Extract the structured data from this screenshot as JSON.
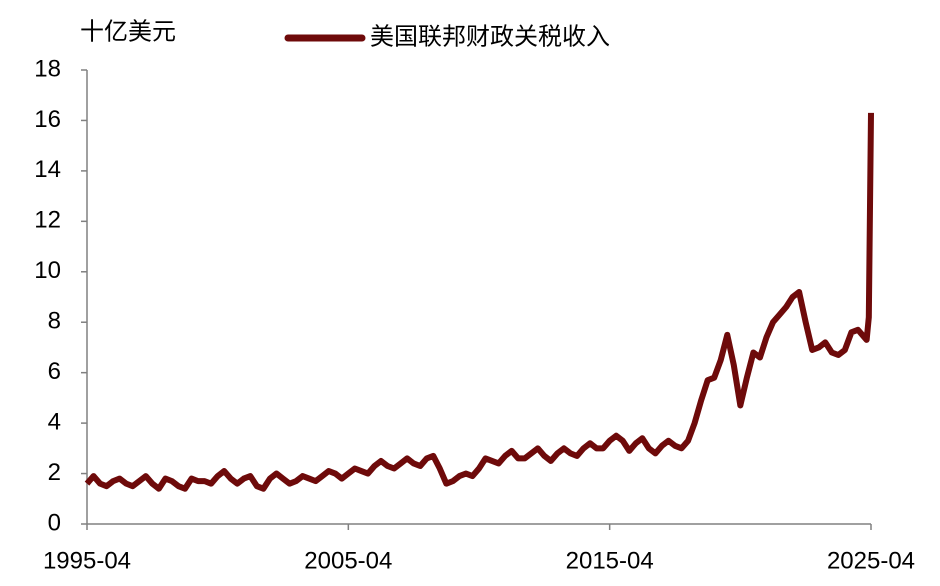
{
  "chart_data": {
    "type": "line",
    "y_label": "十亿美元",
    "x": [
      "1995-04",
      "1995-07",
      "1995-10",
      "1996-01",
      "1996-04",
      "1996-07",
      "1996-10",
      "1997-01",
      "1997-04",
      "1997-07",
      "1997-10",
      "1998-01",
      "1998-04",
      "1998-07",
      "1998-10",
      "1999-01",
      "1999-04",
      "1999-07",
      "1999-10",
      "2000-01",
      "2000-04",
      "2000-07",
      "2000-10",
      "2001-01",
      "2001-04",
      "2001-07",
      "2001-10",
      "2002-01",
      "2002-04",
      "2002-07",
      "2002-10",
      "2003-01",
      "2003-04",
      "2003-07",
      "2003-10",
      "2004-01",
      "2004-04",
      "2004-07",
      "2004-10",
      "2005-01",
      "2005-04",
      "2005-07",
      "2005-10",
      "2006-01",
      "2006-04",
      "2006-07",
      "2006-10",
      "2007-01",
      "2007-04",
      "2007-07",
      "2007-10",
      "2008-01",
      "2008-04",
      "2008-07",
      "2008-10",
      "2009-01",
      "2009-04",
      "2009-07",
      "2009-10",
      "2010-01",
      "2010-04",
      "2010-07",
      "2010-10",
      "2011-01",
      "2011-04",
      "2011-07",
      "2011-10",
      "2012-01",
      "2012-04",
      "2012-07",
      "2012-10",
      "2013-01",
      "2013-04",
      "2013-07",
      "2013-10",
      "2014-01",
      "2014-04",
      "2014-07",
      "2014-10",
      "2015-01",
      "2015-04",
      "2015-07",
      "2015-10",
      "2016-01",
      "2016-04",
      "2016-07",
      "2016-10",
      "2017-01",
      "2017-04",
      "2017-07",
      "2017-10",
      "2018-01",
      "2018-04",
      "2018-07",
      "2018-10",
      "2019-01",
      "2019-04",
      "2019-07",
      "2019-10",
      "2020-01",
      "2020-04",
      "2020-07",
      "2020-10",
      "2021-01",
      "2021-04",
      "2021-07",
      "2021-10",
      "2022-01",
      "2022-04",
      "2022-07",
      "2022-10",
      "2023-01",
      "2023-04",
      "2023-07",
      "2023-10",
      "2024-01",
      "2024-04",
      "2024-07",
      "2024-10",
      "2025-01",
      "2025-02",
      "2025-03",
      "2025-04"
    ],
    "series": [
      {
        "name": "美国联邦财政关税收入",
        "color": "#6e0a0a",
        "values": [
          1.6,
          1.9,
          1.6,
          1.5,
          1.7,
          1.8,
          1.6,
          1.5,
          1.7,
          1.9,
          1.6,
          1.4,
          1.8,
          1.7,
          1.5,
          1.4,
          1.8,
          1.7,
          1.7,
          1.6,
          1.9,
          2.1,
          1.8,
          1.6,
          1.8,
          1.9,
          1.5,
          1.4,
          1.8,
          2.0,
          1.8,
          1.6,
          1.7,
          1.9,
          1.8,
          1.7,
          1.9,
          2.1,
          2.0,
          1.8,
          2.0,
          2.2,
          2.1,
          2.0,
          2.3,
          2.5,
          2.3,
          2.2,
          2.4,
          2.6,
          2.4,
          2.3,
          2.6,
          2.7,
          2.2,
          1.6,
          1.7,
          1.9,
          2.0,
          1.9,
          2.2,
          2.6,
          2.5,
          2.4,
          2.7,
          2.9,
          2.6,
          2.6,
          2.8,
          3.0,
          2.7,
          2.5,
          2.8,
          3.0,
          2.8,
          2.7,
          3.0,
          3.2,
          3.0,
          3.0,
          3.3,
          3.5,
          3.3,
          2.9,
          3.2,
          3.4,
          3.0,
          2.8,
          3.1,
          3.3,
          3.1,
          3.0,
          3.3,
          4.0,
          4.9,
          5.7,
          5.8,
          6.5,
          7.5,
          6.3,
          4.7,
          5.8,
          6.8,
          6.6,
          7.4,
          8.0,
          8.3,
          8.6,
          9.0,
          9.2,
          8.0,
          6.9,
          7.0,
          7.2,
          6.8,
          6.7,
          6.9,
          7.6,
          7.7,
          7.4,
          7.3,
          8.2,
          16.3
        ]
      }
    ],
    "xlim": [
      "1995-04",
      "2025-04"
    ],
    "xticks": [
      "1995-04",
      "2005-04",
      "2015-04",
      "2025-04"
    ],
    "ylim": [
      0,
      18
    ],
    "yticks": [
      0,
      2,
      4,
      6,
      8,
      10,
      12,
      14,
      16,
      18
    ],
    "grid": false
  }
}
